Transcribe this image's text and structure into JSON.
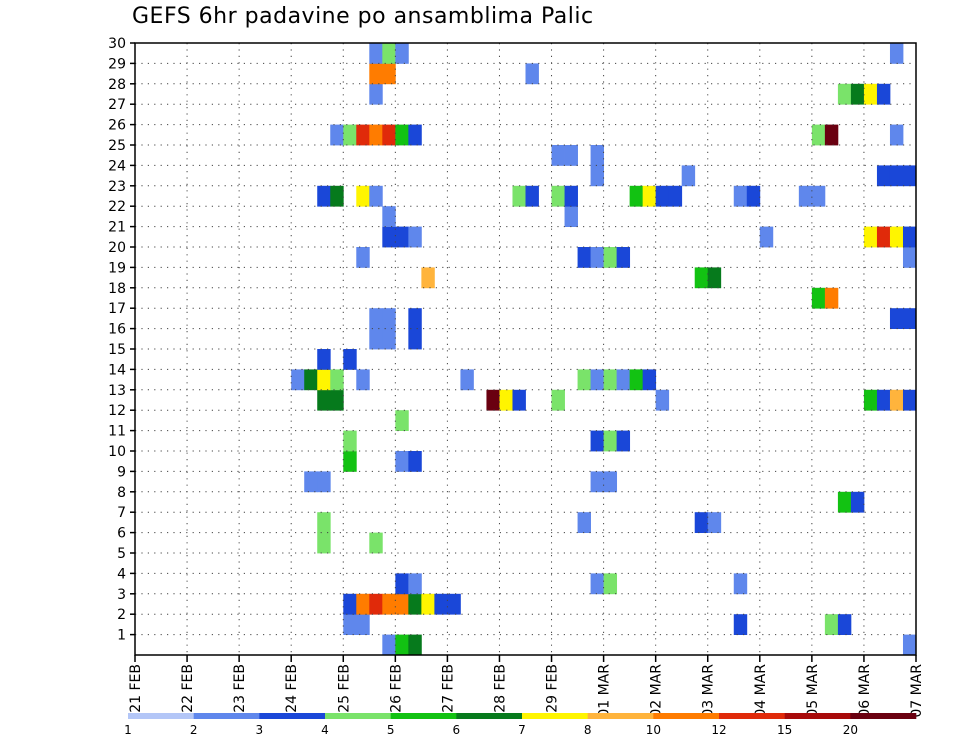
{
  "chart_data": {
    "type": "heatmap",
    "title": "GEFS 6hr padavine po ansamblima Palic",
    "y_ticks": [
      1,
      2,
      3,
      4,
      5,
      6,
      7,
      8,
      9,
      10,
      11,
      12,
      13,
      14,
      15,
      16,
      17,
      18,
      19,
      20,
      21,
      22,
      23,
      24,
      25,
      26,
      27,
      28,
      29,
      30
    ],
    "ylim": [
      0,
      30
    ],
    "x_tick_labels": [
      "21 FEB",
      "22 FEB",
      "23 FEB",
      "24 FEB",
      "25 FEB",
      "26 FEB",
      "27 FEB",
      "28 FEB",
      "29 FEB",
      "01 MAR",
      "02 MAR",
      "03 MAR",
      "04 MAR",
      "05 MAR",
      "06 MAR",
      "07 MAR"
    ],
    "x_unit": "6-hour step from 21 FEB 00Z",
    "xlim": [
      0,
      60
    ],
    "grid": true,
    "legend_position": "bottom",
    "legend": {
      "levels": [
        "1",
        "2",
        "3",
        "4",
        "5",
        "6",
        "7",
        "8",
        "10",
        "12",
        "15",
        "20"
      ],
      "colors": [
        "#b3c6f7",
        "#5f87ec",
        "#1a47d8",
        "#7ae36a",
        "#12c212",
        "#067a1c",
        "#fff500",
        "#ffb43c",
        "#ff7c00",
        "#e02a0a",
        "#a80a0a",
        "#6a0010"
      ]
    },
    "cells": [
      [
        0,
        19,
        1
      ],
      [
        0,
        20,
        4
      ],
      [
        0,
        21,
        5
      ],
      [
        0,
        59,
        1
      ],
      [
        1,
        16,
        1
      ],
      [
        1,
        17,
        1
      ],
      [
        1,
        46,
        2
      ],
      [
        1,
        53,
        3
      ],
      [
        1,
        54,
        2
      ],
      [
        2,
        16,
        2
      ],
      [
        2,
        17,
        8
      ],
      [
        2,
        18,
        9
      ],
      [
        2,
        19,
        8
      ],
      [
        2,
        20,
        8
      ],
      [
        2,
        21,
        5
      ],
      [
        2,
        22,
        6
      ],
      [
        2,
        23,
        2
      ],
      [
        2,
        24,
        2
      ],
      [
        3,
        20,
        2
      ],
      [
        3,
        21,
        1
      ],
      [
        3,
        35,
        1
      ],
      [
        3,
        36,
        3
      ],
      [
        3,
        46,
        1
      ],
      [
        5,
        14,
        3
      ],
      [
        5,
        18,
        3
      ],
      [
        6,
        14,
        3
      ],
      [
        6,
        34,
        1
      ],
      [
        6,
        43,
        2
      ],
      [
        6,
        44,
        1
      ],
      [
        7,
        54,
        4
      ],
      [
        7,
        55,
        2
      ],
      [
        8,
        13,
        1
      ],
      [
        8,
        14,
        1
      ],
      [
        8,
        35,
        1
      ],
      [
        8,
        36,
        1
      ],
      [
        9,
        16,
        4
      ],
      [
        9,
        20,
        1
      ],
      [
        9,
        21,
        2
      ],
      [
        10,
        16,
        3
      ],
      [
        10,
        35,
        2
      ],
      [
        10,
        36,
        3
      ],
      [
        10,
        37,
        2
      ],
      [
        11,
        20,
        3
      ],
      [
        12,
        14,
        5
      ],
      [
        12,
        15,
        5
      ],
      [
        12,
        27,
        11
      ],
      [
        12,
        28,
        6
      ],
      [
        12,
        29,
        2
      ],
      [
        12,
        32,
        3
      ],
      [
        12,
        40,
        1
      ],
      [
        12,
        56,
        4
      ],
      [
        12,
        57,
        2
      ],
      [
        12,
        58,
        7
      ],
      [
        12,
        59,
        2
      ],
      [
        13,
        12,
        1
      ],
      [
        13,
        13,
        5
      ],
      [
        13,
        14,
        6
      ],
      [
        13,
        15,
        3
      ],
      [
        13,
        17,
        1
      ],
      [
        13,
        25,
        1
      ],
      [
        13,
        34,
        3
      ],
      [
        13,
        35,
        1
      ],
      [
        13,
        36,
        3
      ],
      [
        13,
        37,
        1
      ],
      [
        13,
        38,
        4
      ],
      [
        13,
        39,
        2
      ],
      [
        14,
        14,
        2
      ],
      [
        14,
        16,
        2
      ],
      [
        15,
        18,
        1
      ],
      [
        15,
        19,
        1
      ],
      [
        15,
        21,
        2
      ],
      [
        16,
        18,
        1
      ],
      [
        16,
        19,
        1
      ],
      [
        16,
        21,
        2
      ],
      [
        16,
        58,
        2
      ],
      [
        16,
        59,
        2
      ],
      [
        17,
        52,
        4
      ],
      [
        17,
        53,
        8
      ],
      [
        18,
        22,
        7
      ],
      [
        18,
        43,
        4
      ],
      [
        18,
        44,
        5
      ],
      [
        19,
        17,
        1
      ],
      [
        19,
        34,
        2
      ],
      [
        19,
        35,
        1
      ],
      [
        19,
        36,
        3
      ],
      [
        19,
        37,
        2
      ],
      [
        19,
        59,
        1
      ],
      [
        20,
        19,
        2
      ],
      [
        20,
        20,
        2
      ],
      [
        20,
        21,
        1
      ],
      [
        20,
        48,
        1
      ],
      [
        20,
        56,
        6
      ],
      [
        20,
        57,
        9
      ],
      [
        20,
        58,
        6
      ],
      [
        20,
        59,
        2
      ],
      [
        21,
        19,
        1
      ],
      [
        21,
        33,
        1
      ],
      [
        22,
        14,
        2
      ],
      [
        22,
        15,
        5
      ],
      [
        22,
        17,
        6
      ],
      [
        22,
        18,
        1
      ],
      [
        22,
        29,
        3
      ],
      [
        22,
        30,
        2
      ],
      [
        22,
        32,
        3
      ],
      [
        22,
        33,
        2
      ],
      [
        22,
        38,
        4
      ],
      [
        22,
        39,
        6
      ],
      [
        22,
        40,
        2
      ],
      [
        22,
        41,
        2
      ],
      [
        22,
        46,
        1
      ],
      [
        22,
        47,
        2
      ],
      [
        22,
        51,
        1
      ],
      [
        22,
        52,
        1
      ],
      [
        23,
        35,
        1
      ],
      [
        23,
        42,
        1
      ],
      [
        23,
        57,
        2
      ],
      [
        23,
        58,
        2
      ],
      [
        23,
        59,
        2
      ],
      [
        24,
        32,
        1
      ],
      [
        24,
        33,
        1
      ],
      [
        24,
        35,
        1
      ],
      [
        25,
        15,
        1
      ],
      [
        25,
        16,
        3
      ],
      [
        25,
        17,
        9
      ],
      [
        25,
        18,
        8
      ],
      [
        25,
        19,
        9
      ],
      [
        25,
        20,
        4
      ],
      [
        25,
        21,
        2
      ],
      [
        25,
        52,
        3
      ],
      [
        25,
        53,
        11
      ],
      [
        25,
        58,
        1
      ],
      [
        27,
        18,
        1
      ],
      [
        27,
        54,
        3
      ],
      [
        27,
        55,
        5
      ],
      [
        27,
        56,
        6
      ],
      [
        27,
        57,
        2
      ],
      [
        28,
        18,
        8
      ],
      [
        28,
        19,
        8
      ],
      [
        28,
        30,
        1
      ],
      [
        29,
        18,
        1
      ],
      [
        29,
        19,
        3
      ],
      [
        29,
        20,
        1
      ],
      [
        29,
        58,
        1
      ]
    ]
  }
}
